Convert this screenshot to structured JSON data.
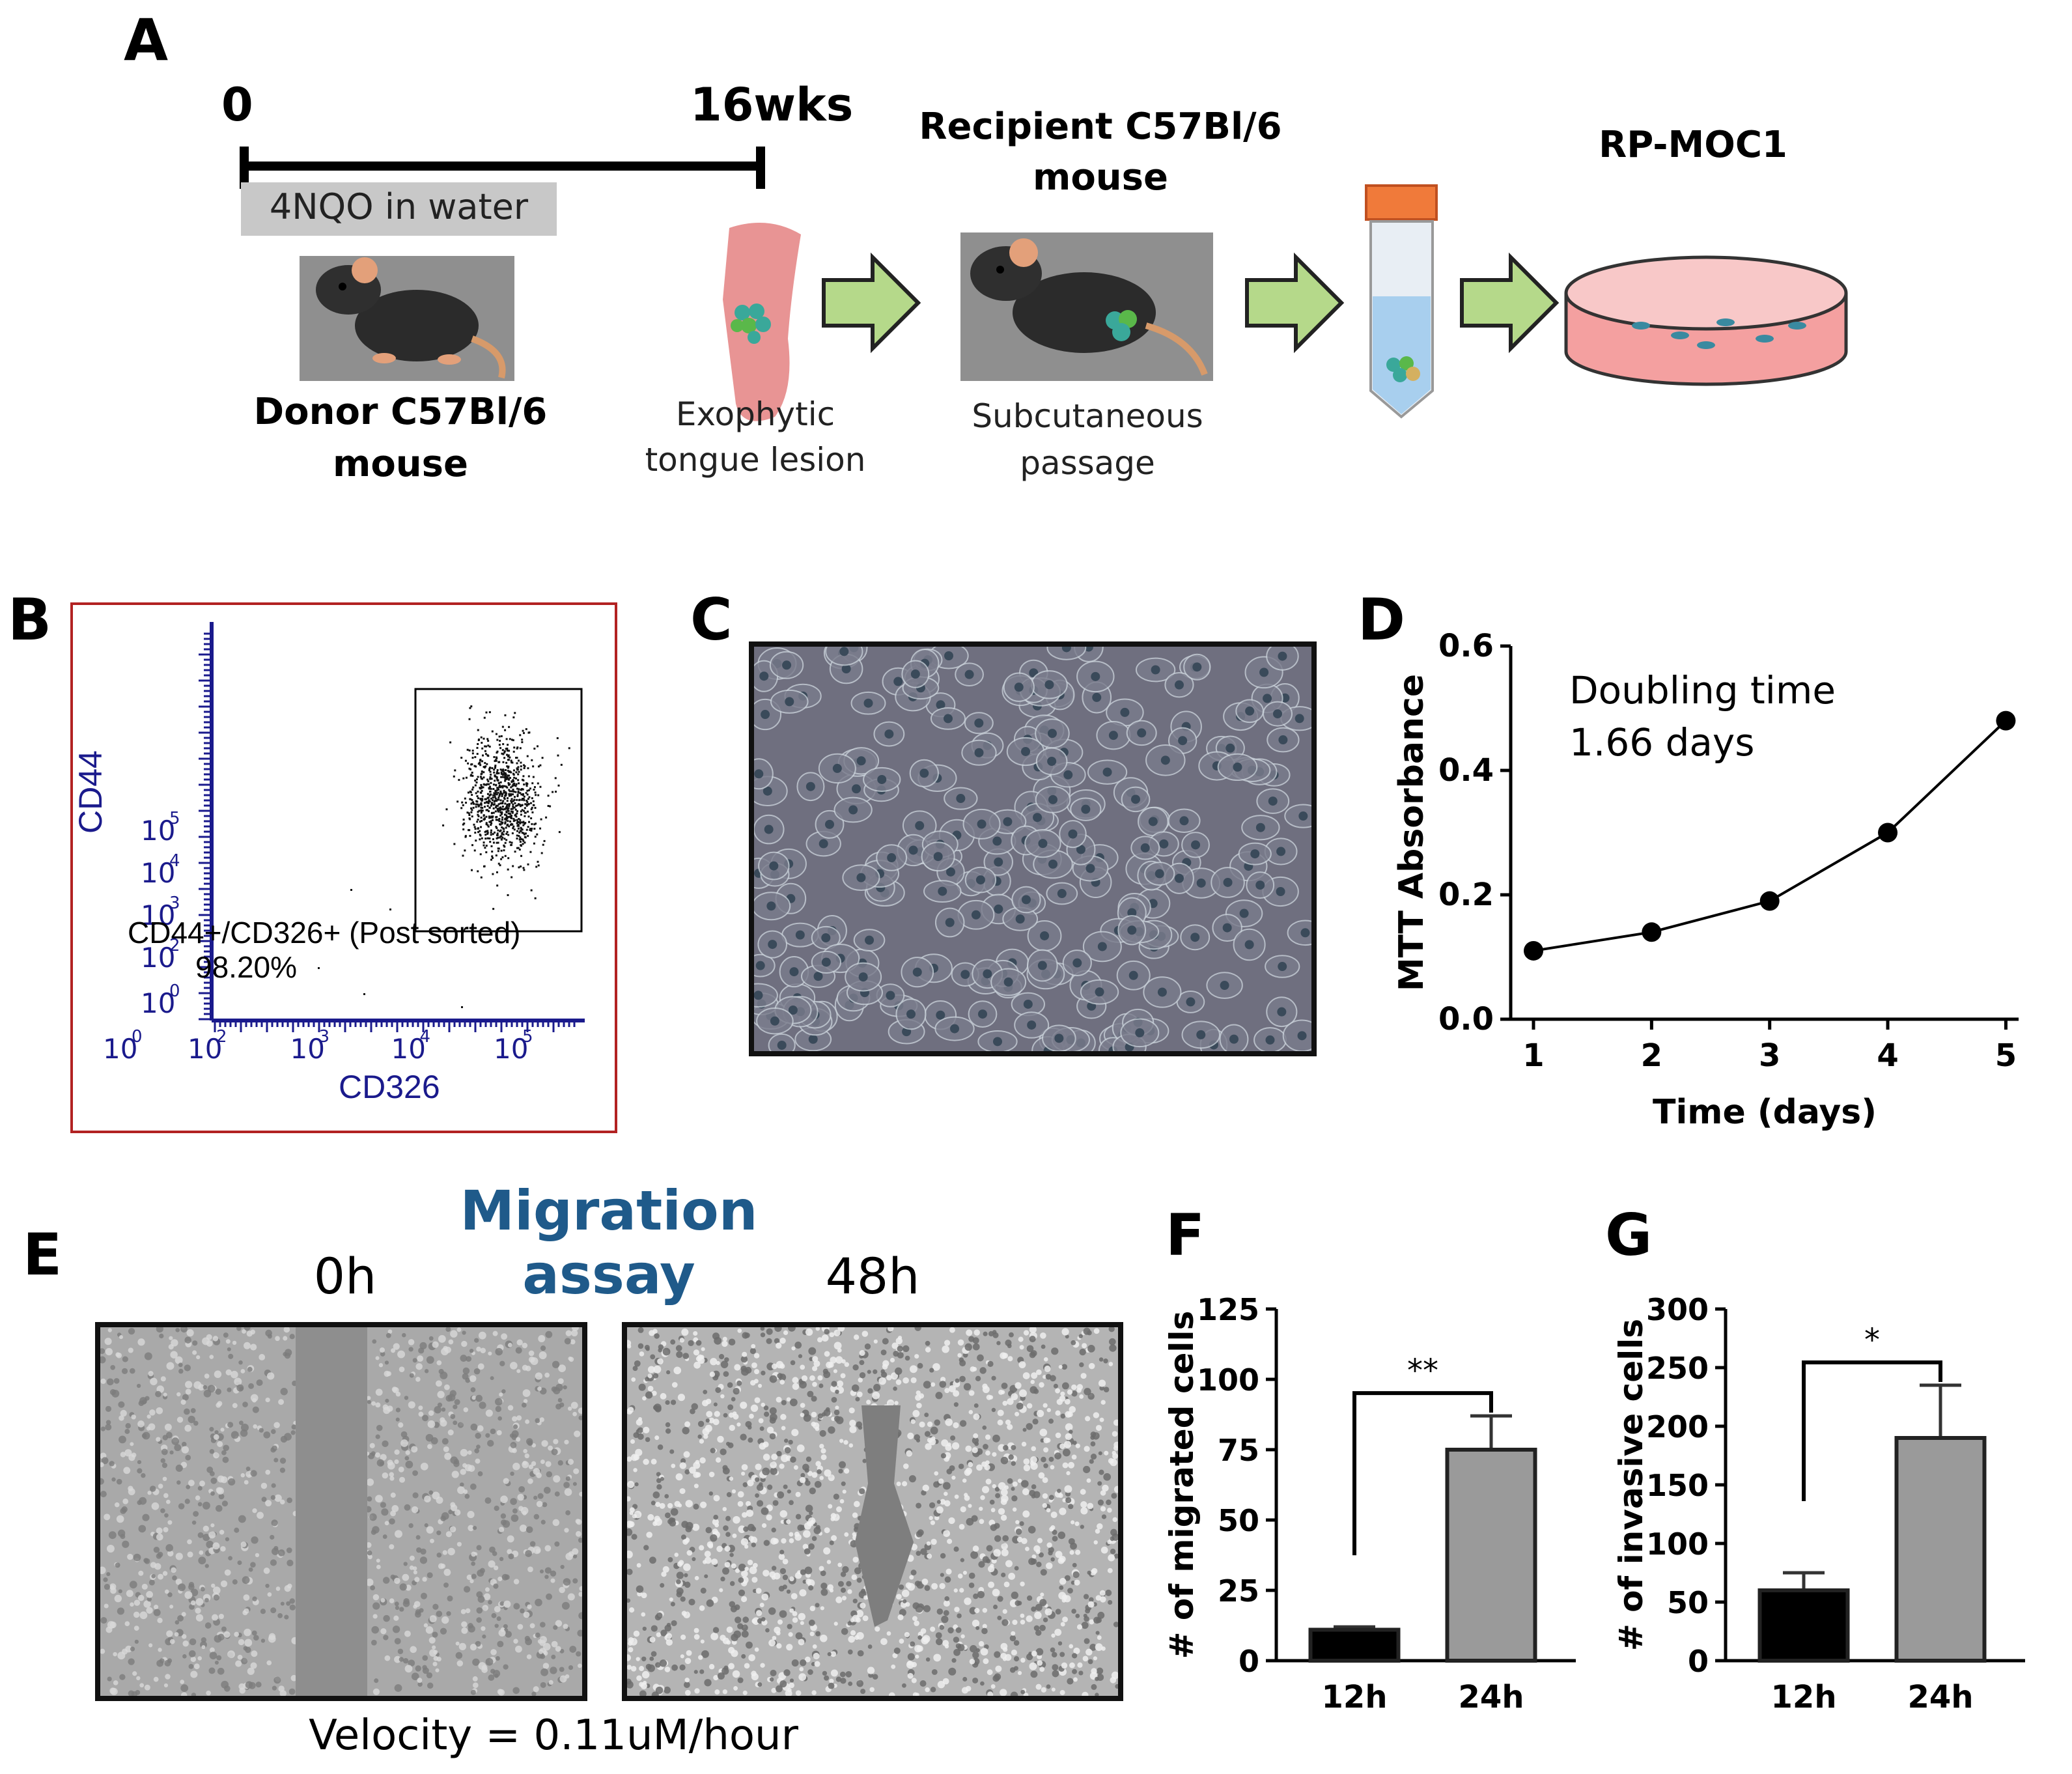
{
  "panel_labels": {
    "a": "A",
    "b": "B",
    "c": "C",
    "d": "D",
    "e": "E",
    "f": "F",
    "g": "G"
  },
  "panel_a": {
    "timeline_start": "0",
    "timeline_end": "16wks",
    "treatment": "4NQO in water",
    "donor": [
      "Donor C57Bl/6",
      "mouse"
    ],
    "lesion": [
      "Exophytic",
      "tongue lesion"
    ],
    "recipient": [
      "Recipient C57Bl/6",
      "mouse"
    ],
    "passage": [
      "Subcutaneous",
      "passage"
    ],
    "cell_line": "RP-MOC1"
  },
  "panel_b": {
    "x_axis_label": "CD326",
    "y_axis_label": "CD44",
    "tick_base": "10",
    "x_tick_exponents": [
      "0",
      "2",
      "3",
      "4",
      "5"
    ],
    "y_tick_exponents": [
      "0",
      "2",
      "3",
      "4",
      "5"
    ],
    "gate_label": "CD44+/CD326+ (Post sorted)",
    "gate_percent": "98.20%",
    "colors": {
      "axis": "#1a1a8c",
      "frame": "#b22222"
    }
  },
  "panel_e": {
    "title": "Migration assay",
    "image_labels": [
      "0h",
      "48h"
    ],
    "velocity": "Velocity = 0.11uM/hour",
    "title_color": "#1f5a8a"
  },
  "chart_data": [
    {
      "panel": "D",
      "type": "line",
      "x": [
        1,
        2,
        3,
        4,
        5
      ],
      "y": [
        0.11,
        0.14,
        0.19,
        0.3,
        0.48
      ],
      "xlabel": "Time  (days)",
      "ylabel": "MTT Absorbance",
      "xlim": [
        1,
        5
      ],
      "ylim": [
        0.0,
        0.6
      ],
      "x_ticks": [
        "1",
        "2",
        "3",
        "4",
        "5"
      ],
      "y_ticks": [
        "0.0",
        "0.2",
        "0.4",
        "0.6"
      ],
      "annotation": [
        "Doubling time",
        "1.66 days"
      ]
    },
    {
      "panel": "F",
      "type": "bar",
      "categories": [
        "12h",
        "24h"
      ],
      "values": [
        11,
        75
      ],
      "errors": [
        1,
        12
      ],
      "colors": [
        "#000000",
        "#9a9a9a"
      ],
      "ylabel": "# of migrated cells",
      "ylim": [
        0,
        125
      ],
      "y_ticks": [
        "0",
        "25",
        "50",
        "75",
        "100",
        "125"
      ],
      "significance": "**"
    },
    {
      "panel": "G",
      "type": "bar",
      "categories": [
        "12h",
        "24h"
      ],
      "values": [
        60,
        190
      ],
      "errors": [
        15,
        45
      ],
      "colors": [
        "#000000",
        "#9a9a9a"
      ],
      "ylabel": "# of invasive cells",
      "ylim": [
        0,
        300
      ],
      "y_ticks": [
        "0",
        "50",
        "100",
        "150",
        "200",
        "250",
        "300"
      ],
      "significance": "*"
    }
  ]
}
